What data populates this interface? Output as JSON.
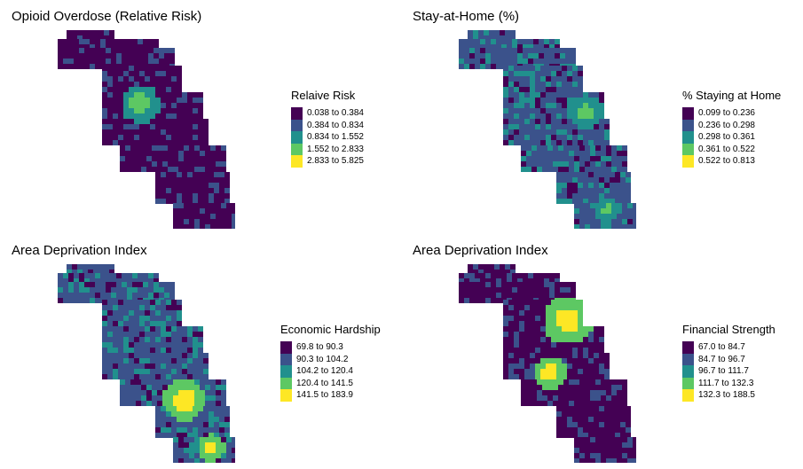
{
  "colors": {
    "c1": "#440154",
    "c2": "#3b528b",
    "c3": "#21908d",
    "c4": "#5dc863",
    "c5": "#fde725",
    "lake": "#ffffff"
  },
  "panels": [
    {
      "title": "Opioid Overdose (Relative Risk)",
      "legend_title": "Relaive Risk",
      "legend": [
        "0.038 to 0.384",
        "0.384 to 0.834",
        "0.834 to 1.552",
        "1.552 to 2.833",
        "2.833 to 5.825"
      ],
      "dominant_class": 1,
      "hotspot_class": 4
    },
    {
      "title": "Stay-at-Home (%)",
      "legend_title": "% Staying at Home",
      "legend": [
        "0.099 to 0.236",
        "0.236 to 0.298",
        "0.298 to 0.361",
        "0.361 to 0.522",
        "0.522 to 0.813"
      ],
      "dominant_class": 2,
      "hotspot_class": 4
    },
    {
      "title": "Area Deprivation Index",
      "legend_title": "Economic Hardship",
      "legend": [
        "69.8 to 90.3",
        "90.3 to 104.2",
        "104.2 to 120.4",
        "120.4 to 141.5",
        "141.5 to 183.9"
      ],
      "dominant_class": 2,
      "hotspot_class": 5
    },
    {
      "title": "Area Deprivation Index",
      "legend_title": "Financial Strength",
      "legend": [
        "67.0 to 84.7",
        "84.7 to 96.7",
        "96.7 to 111.7",
        "111.7 to 132.3",
        "132.3 to 188.5"
      ],
      "dominant_class": 1,
      "hotspot_class": 5
    }
  ]
}
